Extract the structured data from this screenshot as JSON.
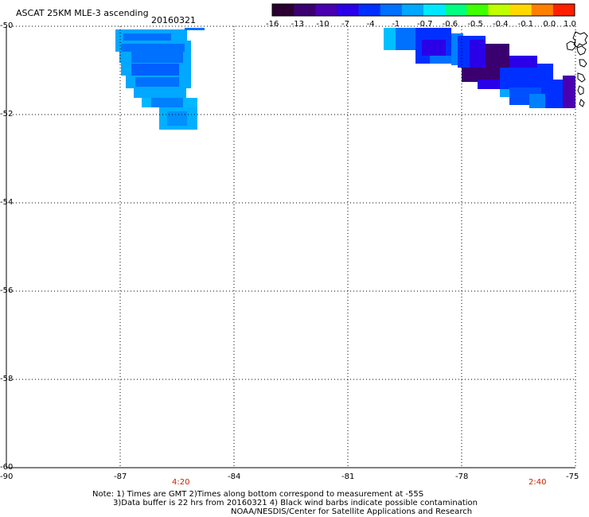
{
  "header": {
    "title": "ASCAT 25KM MLE-3 ascending",
    "date": "20160321"
  },
  "colorbar": {
    "labels": [
      "-16",
      "-13",
      "-10",
      "-7",
      "-4",
      "-1",
      "-0.7",
      "-0.6",
      "-0.5",
      "-0.4",
      "-0.1",
      "0.0",
      "1.0"
    ],
    "colors": [
      "#2a0030",
      "#3a0070",
      "#4a00b0",
      "#2a00e8",
      "#0030ff",
      "#0070ff",
      "#00a8ff",
      "#00e8ff",
      "#00ff80",
      "#40ff00",
      "#c0ff00",
      "#ffd800",
      "#ff8000",
      "#ff2000"
    ]
  },
  "map": {
    "lon_range": [
      -90,
      -75
    ],
    "lat_range": [
      -60,
      -50
    ],
    "lon_ticks": [
      "-90",
      "-87",
      "-84",
      "-81",
      "-78",
      "-75"
    ],
    "lat_ticks": [
      "-50",
      "-52",
      "-54",
      "-56",
      "-58",
      "-60"
    ],
    "time_marks": [
      "4:20",
      "2:40"
    ]
  },
  "notes": {
    "line1": "Note: 1) Times are GMT 2)Times along bottom correspond to measurement at -55S",
    "line2": "3)Data buffer is 22 hrs from 20160321 4) Black wind barbs indicate possible contamination",
    "line3": "NOAA/NESDIS/Center for Satellite Applications and Research"
  }
}
